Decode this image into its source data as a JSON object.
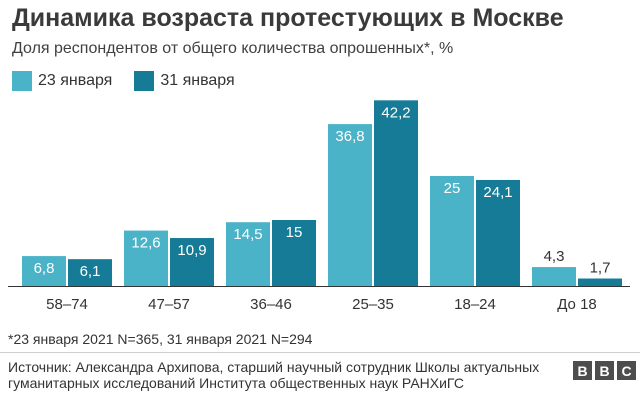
{
  "title": "Динамика возраста протестующих в Москве",
  "subtitle": "Доля респондентов от общего количества опрошенных*, %",
  "colors": {
    "series1": "#4bb3c7",
    "series2": "#167b96",
    "axis": "#333333"
  },
  "chart_data": {
    "type": "bar",
    "title": "Динамика возраста протестующих в Москве",
    "ylabel": "Доля респондентов от общего количества опрошенных*, %",
    "xlabel": "",
    "categories": [
      "58–74",
      "47–57",
      "36–46",
      "25–35",
      "18–24",
      "До 18"
    ],
    "series": [
      {
        "name": "23 января",
        "values": [
          6.8,
          12.6,
          14.5,
          36.8,
          25,
          4.3
        ],
        "labels": [
          "6,8",
          "12,6",
          "14,5",
          "36,8",
          "25",
          "4,3"
        ]
      },
      {
        "name": "31 января",
        "values": [
          6.1,
          10.9,
          15,
          42.2,
          24.1,
          1.7
        ],
        "labels": [
          "6,1",
          "10,9",
          "15",
          "42,2",
          "24,1",
          "1,7"
        ]
      }
    ],
    "ylim": [
      0,
      45
    ],
    "grid": false,
    "legend": "top-left"
  },
  "footnote": "*23 января 2021 N=365, 31 января 2021 N=294",
  "source": "Источник: Александра Архипова, старший научный сотрудник Школы актуальных гуманитарных исследований Института общественных наук РАНХиГС",
  "logo": {
    "letters": [
      "B",
      "B",
      "C"
    ]
  }
}
